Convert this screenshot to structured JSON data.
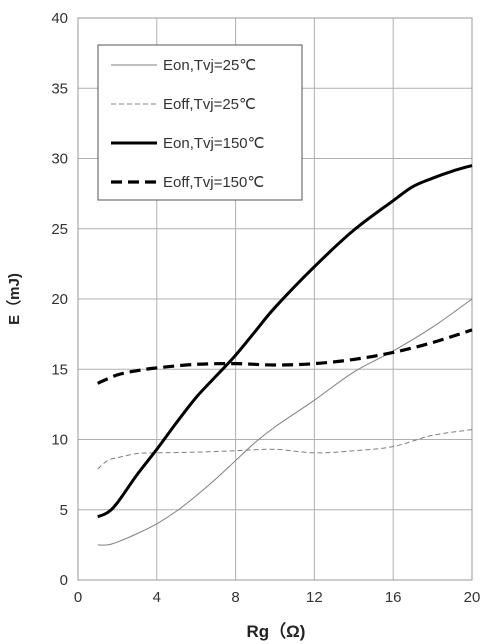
{
  "chart_data": {
    "type": "line",
    "xlabel": "Rg（Ω)",
    "ylabel": "E（mJ)",
    "xlim": [
      0,
      20
    ],
    "ylim": [
      0,
      40
    ],
    "xticks": [
      "0",
      "4",
      "8",
      "12",
      "16",
      "20"
    ],
    "yticks": [
      "0",
      "5",
      "10",
      "15",
      "20",
      "25",
      "30",
      "35",
      "40"
    ],
    "grid": true,
    "legend_position": "top-left",
    "series": [
      {
        "name": "Eon,Tvj=25℃",
        "style": "thin-solid",
        "color": "#7f7f7f",
        "x": [
          1,
          1.5,
          2,
          3,
          4,
          5,
          6,
          7,
          8,
          9,
          10,
          12,
          14,
          16,
          18,
          20
        ],
        "y": [
          2.5,
          2.5,
          2.7,
          3.3,
          4.0,
          4.9,
          6.0,
          7.2,
          8.5,
          9.8,
          10.9,
          12.8,
          14.8,
          16.3,
          18.0,
          20.0
        ]
      },
      {
        "name": "Eoff,Tvj=25℃",
        "style": "thin-dashed",
        "color": "#7f7f7f",
        "x": [
          1,
          1.5,
          2,
          3,
          4,
          6,
          8,
          10,
          12,
          14,
          16,
          18,
          20
        ],
        "y": [
          7.9,
          8.5,
          8.7,
          9.0,
          9.05,
          9.1,
          9.2,
          9.3,
          9.05,
          9.2,
          9.5,
          10.3,
          10.7
        ]
      },
      {
        "name": "Eon,Tvj=150℃",
        "style": "thick-solid",
        "color": "#000000",
        "x": [
          1,
          1.5,
          2,
          3,
          4,
          5,
          6,
          7,
          8,
          9,
          10,
          12,
          14,
          16,
          17,
          18,
          19,
          20
        ],
        "y": [
          4.5,
          4.8,
          5.5,
          7.5,
          9.3,
          11.2,
          13.0,
          14.5,
          16.0,
          17.7,
          19.4,
          22.3,
          24.9,
          27.0,
          28.0,
          28.6,
          29.1,
          29.5
        ]
      },
      {
        "name": "Eoff,Tvj=150℃",
        "style": "thick-dashed",
        "color": "#000000",
        "x": [
          1,
          2,
          3,
          4,
          6,
          8,
          10,
          12,
          14,
          16,
          18,
          20
        ],
        "y": [
          14.0,
          14.6,
          14.9,
          15.1,
          15.35,
          15.4,
          15.3,
          15.4,
          15.7,
          16.2,
          16.9,
          17.8
        ]
      }
    ]
  }
}
